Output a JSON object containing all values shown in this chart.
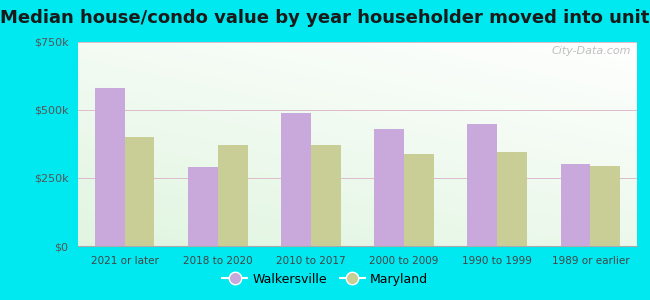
{
  "title": "Median house/condo value by year householder moved into unit",
  "categories": [
    "2021 or later",
    "2018 to 2020",
    "2010 to 2017",
    "2000 to 2009",
    "1990 to 1999",
    "1989 or earlier"
  ],
  "walkersville": [
    580000,
    290000,
    490000,
    430000,
    450000,
    300000
  ],
  "maryland": [
    400000,
    370000,
    370000,
    340000,
    345000,
    295000
  ],
  "walkersville_color": "#c9a8dc",
  "maryland_color": "#c8ce96",
  "background_outer": "#00e8f0",
  "title_fontsize": 13,
  "legend_labels": [
    "Walkersville",
    "Maryland"
  ],
  "ylim": [
    0,
    750000
  ],
  "yticks": [
    0,
    250000,
    500000,
    750000
  ],
  "bar_width": 0.32,
  "watermark": "City-Data.com"
}
